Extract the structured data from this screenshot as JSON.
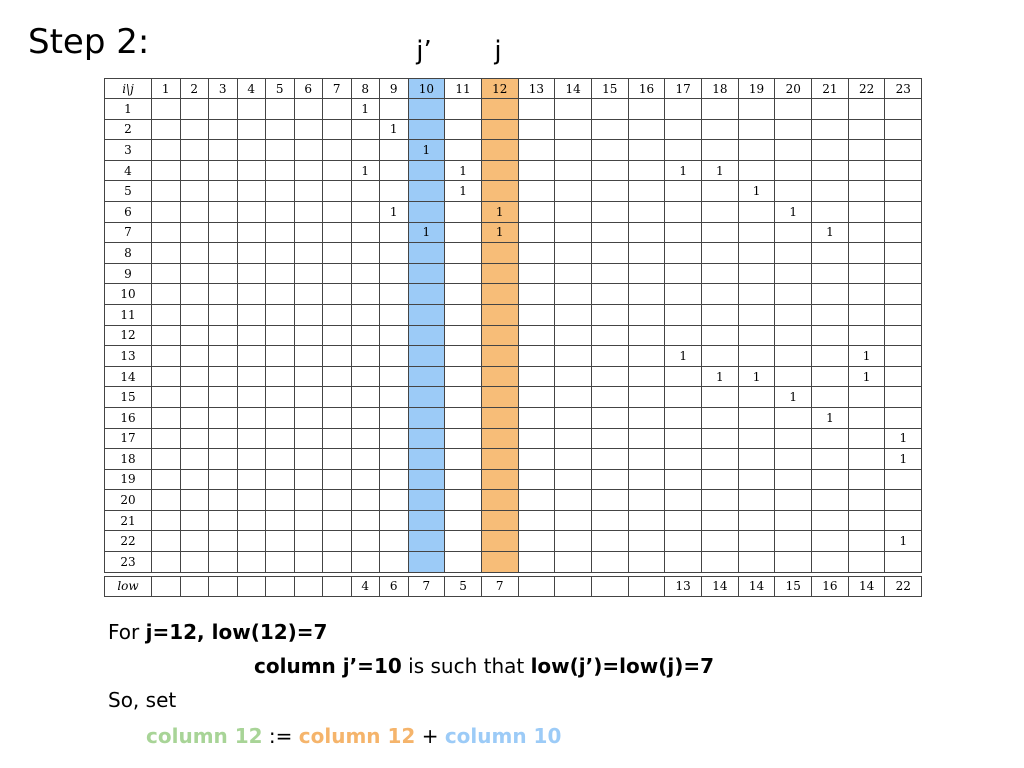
{
  "title": "Step 2:",
  "markers": {
    "j_prime": "j’",
    "j": "j"
  },
  "matrix": {
    "corner_label": "i\\j",
    "columns": [
      "1",
      "2",
      "3",
      "4",
      "5",
      "6",
      "7",
      "8",
      "9",
      "10",
      "11",
      "12",
      "13",
      "14",
      "15",
      "16",
      "17",
      "18",
      "19",
      "20",
      "21",
      "22",
      "23"
    ],
    "highlight": {
      "blue_column": "10",
      "orange_column": "12",
      "blue_color": "#9ccbf7",
      "orange_color": "#f7bd78"
    },
    "rows": [
      {
        "label": "1",
        "cells": [
          "",
          "",
          "",
          "",
          "",
          "",
          "",
          "1",
          "",
          "",
          "",
          "",
          "",
          "",
          "",
          "",
          "",
          "",
          "",
          "",
          "",
          "",
          ""
        ]
      },
      {
        "label": "2",
        "cells": [
          "",
          "",
          "",
          "",
          "",
          "",
          "",
          "",
          "1",
          "",
          "",
          "",
          "",
          "",
          "",
          "",
          "",
          "",
          "",
          "",
          "",
          "",
          ""
        ]
      },
      {
        "label": "3",
        "cells": [
          "",
          "",
          "",
          "",
          "",
          "",
          "",
          "",
          "",
          "1",
          "",
          "",
          "",
          "",
          "",
          "",
          "",
          "",
          "",
          "",
          "",
          "",
          ""
        ]
      },
      {
        "label": "4",
        "cells": [
          "",
          "",
          "",
          "",
          "",
          "",
          "",
          "1",
          "",
          "",
          "1",
          "",
          "",
          "",
          "",
          "",
          "1",
          "1",
          "",
          "",
          "",
          "",
          ""
        ]
      },
      {
        "label": "5",
        "cells": [
          "",
          "",
          "",
          "",
          "",
          "",
          "",
          "",
          "",
          "",
          "1",
          "",
          "",
          "",
          "",
          "",
          "",
          "",
          "1",
          "",
          "",
          "",
          ""
        ]
      },
      {
        "label": "6",
        "cells": [
          "",
          "",
          "",
          "",
          "",
          "",
          "",
          "",
          "1",
          "",
          "",
          "1",
          "",
          "",
          "",
          "",
          "",
          "",
          "",
          "1",
          "",
          "",
          ""
        ]
      },
      {
        "label": "7",
        "cells": [
          "",
          "",
          "",
          "",
          "",
          "",
          "",
          "",
          "",
          "1",
          "",
          "1",
          "",
          "",
          "",
          "",
          "",
          "",
          "",
          "",
          "1",
          "",
          ""
        ]
      },
      {
        "label": "8",
        "cells": [
          "",
          "",
          "",
          "",
          "",
          "",
          "",
          "",
          "",
          "",
          "",
          "",
          "",
          "",
          "",
          "",
          "",
          "",
          "",
          "",
          "",
          "",
          ""
        ]
      },
      {
        "label": "9",
        "cells": [
          "",
          "",
          "",
          "",
          "",
          "",
          "",
          "",
          "",
          "",
          "",
          "",
          "",
          "",
          "",
          "",
          "",
          "",
          "",
          "",
          "",
          "",
          ""
        ]
      },
      {
        "label": "10",
        "cells": [
          "",
          "",
          "",
          "",
          "",
          "",
          "",
          "",
          "",
          "",
          "",
          "",
          "",
          "",
          "",
          "",
          "",
          "",
          "",
          "",
          "",
          "",
          ""
        ]
      },
      {
        "label": "11",
        "cells": [
          "",
          "",
          "",
          "",
          "",
          "",
          "",
          "",
          "",
          "",
          "",
          "",
          "",
          "",
          "",
          "",
          "",
          "",
          "",
          "",
          "",
          "",
          ""
        ]
      },
      {
        "label": "12",
        "cells": [
          "",
          "",
          "",
          "",
          "",
          "",
          "",
          "",
          "",
          "",
          "",
          "",
          "",
          "",
          "",
          "",
          "",
          "",
          "",
          "",
          "",
          "",
          ""
        ]
      },
      {
        "label": "13",
        "cells": [
          "",
          "",
          "",
          "",
          "",
          "",
          "",
          "",
          "",
          "",
          "",
          "",
          "",
          "",
          "",
          "",
          "1",
          "",
          "",
          "",
          "",
          "1",
          ""
        ]
      },
      {
        "label": "14",
        "cells": [
          "",
          "",
          "",
          "",
          "",
          "",
          "",
          "",
          "",
          "",
          "",
          "",
          "",
          "",
          "",
          "",
          "",
          "1",
          "1",
          "",
          "",
          "1",
          ""
        ]
      },
      {
        "label": "15",
        "cells": [
          "",
          "",
          "",
          "",
          "",
          "",
          "",
          "",
          "",
          "",
          "",
          "",
          "",
          "",
          "",
          "",
          "",
          "",
          "",
          "1",
          "",
          "",
          ""
        ]
      },
      {
        "label": "16",
        "cells": [
          "",
          "",
          "",
          "",
          "",
          "",
          "",
          "",
          "",
          "",
          "",
          "",
          "",
          "",
          "",
          "",
          "",
          "",
          "",
          "",
          "1",
          "",
          ""
        ]
      },
      {
        "label": "17",
        "cells": [
          "",
          "",
          "",
          "",
          "",
          "",
          "",
          "",
          "",
          "",
          "",
          "",
          "",
          "",
          "",
          "",
          "",
          "",
          "",
          "",
          "",
          "",
          "1"
        ]
      },
      {
        "label": "18",
        "cells": [
          "",
          "",
          "",
          "",
          "",
          "",
          "",
          "",
          "",
          "",
          "",
          "",
          "",
          "",
          "",
          "",
          "",
          "",
          "",
          "",
          "",
          "",
          "1"
        ]
      },
      {
        "label": "19",
        "cells": [
          "",
          "",
          "",
          "",
          "",
          "",
          "",
          "",
          "",
          "",
          "",
          "",
          "",
          "",
          "",
          "",
          "",
          "",
          "",
          "",
          "",
          "",
          ""
        ]
      },
      {
        "label": "20",
        "cells": [
          "",
          "",
          "",
          "",
          "",
          "",
          "",
          "",
          "",
          "",
          "",
          "",
          "",
          "",
          "",
          "",
          "",
          "",
          "",
          "",
          "",
          "",
          ""
        ]
      },
      {
        "label": "21",
        "cells": [
          "",
          "",
          "",
          "",
          "",
          "",
          "",
          "",
          "",
          "",
          "",
          "",
          "",
          "",
          "",
          "",
          "",
          "",
          "",
          "",
          "",
          "",
          ""
        ]
      },
      {
        "label": "22",
        "cells": [
          "",
          "",
          "",
          "",
          "",
          "",
          "",
          "",
          "",
          "",
          "",
          "",
          "",
          "",
          "",
          "",
          "",
          "",
          "",
          "",
          "",
          "",
          "1"
        ]
      },
      {
        "label": "23",
        "cells": [
          "",
          "",
          "",
          "",
          "",
          "",
          "",
          "",
          "",
          "",
          "",
          "",
          "",
          "",
          "",
          "",
          "",
          "",
          "",
          "",
          "",
          "",
          ""
        ]
      }
    ],
    "low_row": {
      "label": "low",
      "cells": [
        "",
        "",
        "",
        "",
        "",
        "",
        "",
        "4",
        "6",
        "7",
        "5",
        "7",
        "",
        "",
        "",
        "",
        "13",
        "14",
        "14",
        "15",
        "16",
        "14",
        "22"
      ]
    }
  },
  "text": {
    "line1_a": "For ",
    "line1_b": "j=12, low(12)=7",
    "line2_a": "column j’=10",
    "line2_b": " is such that ",
    "line2_c": "low(j’)=low(j)=7",
    "line3": "So, set",
    "line4_a": "column 12",
    "line4_b": " := ",
    "line4_c": "column 12",
    "line4_d": " + ",
    "line4_e": "column 10"
  },
  "colors": {
    "green": "#a8d497",
    "orange": "#f5b46b",
    "blue": "#9ccbf7"
  }
}
